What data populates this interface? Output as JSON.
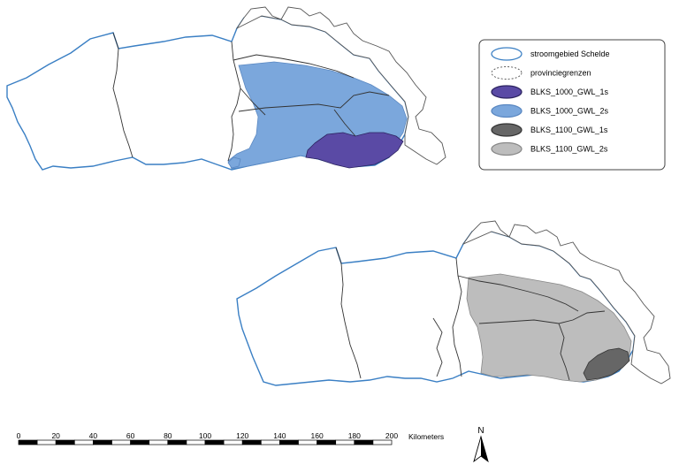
{
  "legend": {
    "items": [
      {
        "label": "stroomgebied Schelde",
        "fill": "#ffffff",
        "stroke": "#3a7fc4",
        "dashed": false
      },
      {
        "label": "provinciegrenzen",
        "fill": "#ffffff",
        "stroke": "#555555",
        "dashed": true
      },
      {
        "label": "BLKS_1000_GWL_1s",
        "fill": "#5a4aa5",
        "stroke": "#2c2360",
        "dashed": false
      },
      {
        "label": "BLKS_1000_GWL_2s",
        "fill": "#7ba7dc",
        "stroke": "#5a88c2",
        "dashed": false
      },
      {
        "label": "BLKS_1100_GWL_1s",
        "fill": "#666666",
        "stroke": "#333333",
        "dashed": false
      },
      {
        "label": "BLKS_1100_GWL_2s",
        "fill": "#bdbdbd",
        "stroke": "#888888",
        "dashed": false
      }
    ]
  },
  "scalebar": {
    "ticks": [
      "0",
      "20",
      "40",
      "60",
      "80",
      "100",
      "120",
      "140",
      "160",
      "180",
      "200"
    ],
    "unit": "Kilometers"
  },
  "north_arrow": {
    "label": "N"
  },
  "colors": {
    "basin_outline": "#3a7fc4",
    "province_line": "#333333"
  }
}
